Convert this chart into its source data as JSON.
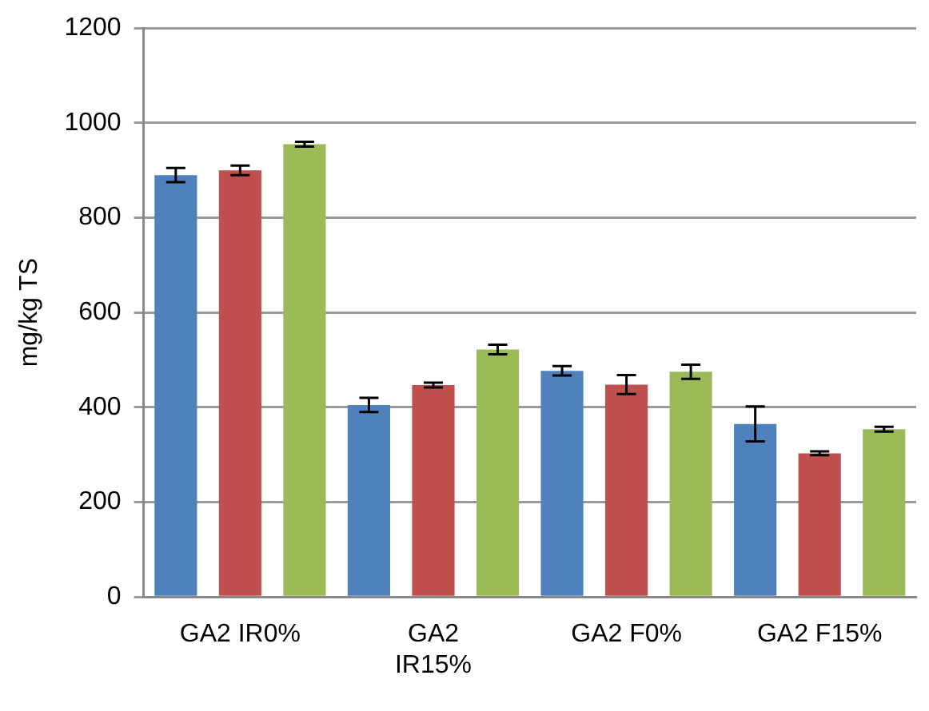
{
  "chart_data": {
    "type": "bar",
    "ylabel": "mg/kg TS",
    "categories": [
      "GA2 IR0%",
      "GA2 IR15%",
      "GA2 F0%",
      "GA2 F15%"
    ],
    "series": [
      {
        "color": "#4f81bd",
        "values": [
          890,
          405,
          477,
          365
        ],
        "errors": [
          15,
          15,
          10,
          37
        ]
      },
      {
        "color": "#c0504d",
        "values": [
          900,
          447,
          448,
          303
        ],
        "errors": [
          10,
          5,
          20,
          4
        ]
      },
      {
        "color": "#9bbb59",
        "values": [
          955,
          522,
          475,
          354
        ],
        "errors": [
          5,
          10,
          15,
          5
        ]
      }
    ],
    "ylim": [
      0,
      1200
    ],
    "yticks": [
      0,
      200,
      400,
      600,
      800,
      1000,
      1200
    ],
    "grid": "y",
    "legend": false
  }
}
